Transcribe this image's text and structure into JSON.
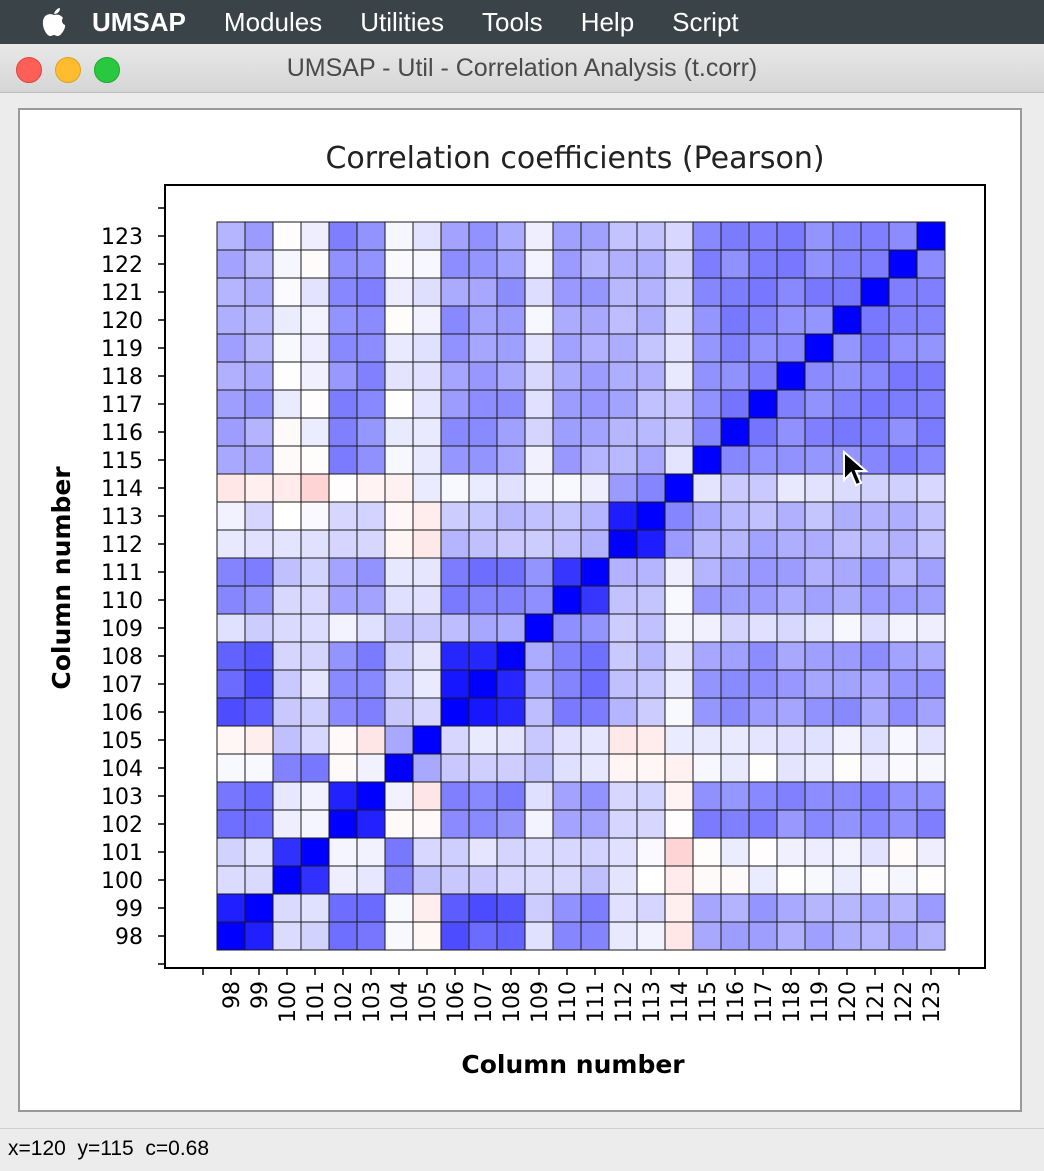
{
  "menubar": {
    "app": "UMSAP",
    "items": [
      "Modules",
      "Utilities",
      "Tools",
      "Help",
      "Script"
    ]
  },
  "window": {
    "title": "UMSAP - Util - Correlation Analysis (t.corr)"
  },
  "chart_data": {
    "type": "heatmap",
    "title": "Correlation coefficients (Pearson)",
    "xlabel": "Column number",
    "ylabel": "Column number",
    "columns": [
      98,
      99,
      100,
      101,
      102,
      103,
      104,
      105,
      106,
      107,
      108,
      109,
      110,
      111,
      112,
      113,
      114,
      115,
      116,
      117,
      118,
      119,
      120,
      121,
      122,
      123
    ],
    "value_range": [
      -1,
      1
    ],
    "colors": {
      "positive": "#0000ff",
      "negative": "#ff0000",
      "zero": "#ffffff",
      "grid": "#1a1a1a"
    },
    "groups": [
      [
        98,
        99
      ],
      [
        100,
        101
      ],
      [
        102,
        103
      ],
      [
        104
      ],
      [
        105
      ],
      [
        106,
        107,
        108
      ],
      [
        109
      ],
      [
        110,
        111
      ],
      [
        112,
        113
      ],
      [
        114
      ],
      [
        115,
        116,
        117,
        118,
        119,
        120,
        121,
        122,
        123
      ]
    ],
    "group_coeffs": [
      [
        0.82,
        0.15,
        0.55,
        0.05,
        -0.05,
        0.65,
        0.15,
        0.5,
        0.1,
        -0.12,
        0.35
      ],
      [
        0.15,
        0.82,
        0.05,
        0.55,
        0.2,
        0.15,
        0.2,
        0.2,
        0.05,
        -0.1,
        0.05
      ],
      [
        0.55,
        0.05,
        0.82,
        0.05,
        -0.05,
        0.45,
        0.1,
        0.4,
        0.15,
        -0.05,
        0.45
      ],
      [
        0.05,
        0.55,
        0.05,
        1.0,
        0.3,
        0.2,
        0.2,
        0.15,
        -0.1,
        -0.05,
        0.05
      ],
      [
        -0.05,
        0.2,
        -0.05,
        0.3,
        1.0,
        0.15,
        0.15,
        0.05,
        -0.05,
        0.05,
        0.1
      ],
      [
        0.65,
        0.15,
        0.45,
        0.2,
        0.15,
        0.85,
        0.3,
        0.55,
        0.25,
        0.05,
        0.4
      ],
      [
        0.15,
        0.2,
        0.1,
        0.2,
        0.15,
        0.3,
        1.0,
        0.4,
        0.2,
        0.05,
        0.1
      ],
      [
        0.5,
        0.2,
        0.4,
        0.15,
        0.05,
        0.55,
        0.4,
        0.85,
        0.3,
        0.05,
        0.35
      ],
      [
        0.1,
        0.05,
        0.15,
        -0.1,
        -0.05,
        0.25,
        0.2,
        0.3,
        0.85,
        0.45,
        0.3
      ],
      [
        -0.12,
        -0.1,
        -0.05,
        -0.05,
        0.05,
        0.05,
        0.05,
        0.05,
        0.45,
        1.0,
        0.15
      ],
      [
        0.35,
        0.05,
        0.45,
        0.05,
        0.1,
        0.4,
        0.1,
        0.35,
        0.3,
        0.15,
        0.48
      ]
    ],
    "highlight": {
      "x": 120,
      "y": 115,
      "c": 0.68
    }
  },
  "status": {
    "x_label": "x=",
    "y_label": "y=",
    "c_label": "c=",
    "x": "120",
    "y": "115",
    "c": "0.68"
  }
}
